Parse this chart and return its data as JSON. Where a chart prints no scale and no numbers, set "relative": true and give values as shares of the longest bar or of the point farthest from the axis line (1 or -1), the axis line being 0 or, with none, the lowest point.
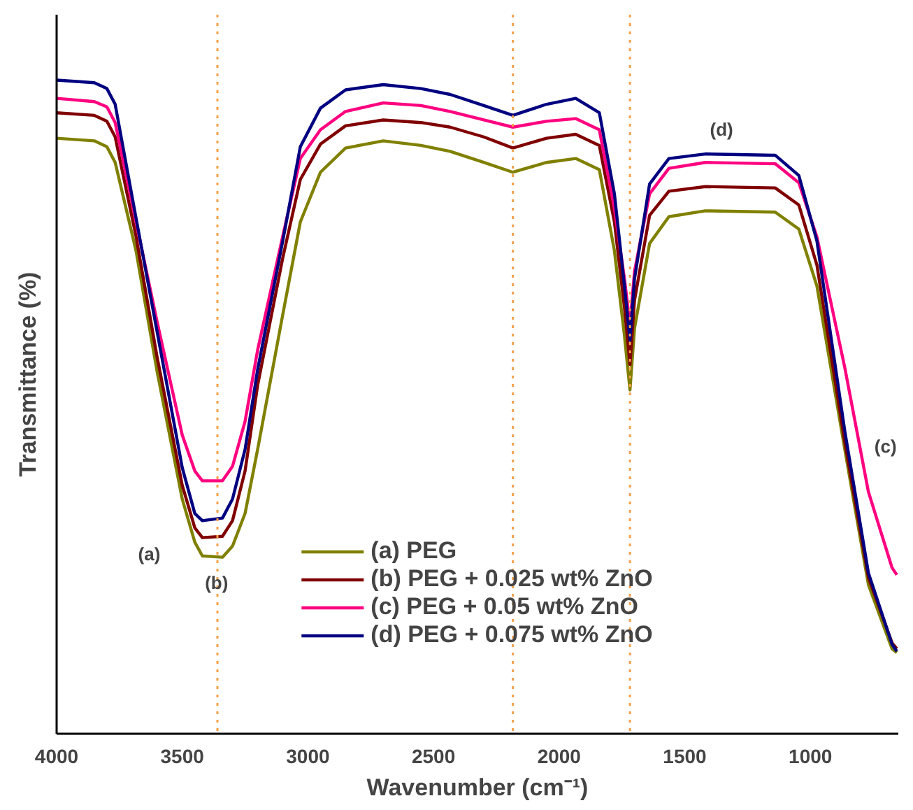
{
  "chart_data": {
    "type": "line",
    "relative": true,
    "xlabel": "Wavenumber (cm⁻¹)",
    "ylabel": "Transmittance (%)",
    "x": [
      4000,
      3850,
      3800,
      3767,
      3684,
      3600,
      3500,
      3450,
      3420,
      3340,
      3300,
      3250,
      3200,
      3100,
      3030,
      2950,
      2850,
      2700,
      2550,
      2434,
      2300,
      2184,
      2050,
      1934,
      1840,
      1780,
      1740,
      1718,
      1700,
      1640,
      1563,
      1418,
      1140,
      1046,
      974,
      863,
      769,
      675,
      656
    ],
    "xlim": [
      4000,
      650
    ],
    "xticks": [
      4000,
      3500,
      3000,
      2500,
      2000,
      1500,
      1000
    ],
    "series": [
      {
        "name": "(a) PEG",
        "color": "#808000",
        "values": [
          0.911,
          0.907,
          0.898,
          0.874,
          0.739,
          0.554,
          0.359,
          0.293,
          0.272,
          0.27,
          0.287,
          0.337,
          0.435,
          0.641,
          0.783,
          0.859,
          0.896,
          0.907,
          0.9,
          0.891,
          0.874,
          0.859,
          0.874,
          0.88,
          0.863,
          0.739,
          0.609,
          0.526,
          0.62,
          0.75,
          0.791,
          0.8,
          0.798,
          0.772,
          0.685,
          0.435,
          0.228,
          0.13,
          0.124
        ]
      },
      {
        "name": "(b) PEG + 0.025 wt% ZnO",
        "color": "#800000",
        "values": [
          0.95,
          0.946,
          0.937,
          0.913,
          0.761,
          0.576,
          0.38,
          0.315,
          0.3,
          0.302,
          0.326,
          0.402,
          0.533,
          0.728,
          0.848,
          0.902,
          0.93,
          0.939,
          0.935,
          0.928,
          0.913,
          0.896,
          0.911,
          0.917,
          0.9,
          0.783,
          0.652,
          0.565,
          0.663,
          0.793,
          0.83,
          0.837,
          0.835,
          0.809,
          0.717,
          0.446,
          0.239,
          0.139,
          0.13
        ]
      },
      {
        "name": "(c) PEG + 0.05 wt% ZnO",
        "color": "#ff0080",
        "values": [
          0.972,
          0.967,
          0.959,
          0.935,
          0.783,
          0.63,
          0.457,
          0.402,
          0.387,
          0.387,
          0.409,
          0.478,
          0.587,
          0.761,
          0.88,
          0.924,
          0.952,
          0.965,
          0.961,
          0.952,
          0.939,
          0.928,
          0.937,
          0.941,
          0.924,
          0.804,
          0.696,
          0.626,
          0.707,
          0.826,
          0.865,
          0.874,
          0.872,
          0.843,
          0.76,
          0.56,
          0.37,
          0.254,
          0.243
        ]
      },
      {
        "name": "(d) PEG + 0.075 wt% ZnO",
        "color": "#000080",
        "values": [
          1.0,
          0.996,
          0.987,
          0.963,
          0.789,
          0.615,
          0.407,
          0.337,
          0.326,
          0.33,
          0.359,
          0.435,
          0.557,
          0.754,
          0.898,
          0.957,
          0.985,
          0.993,
          0.987,
          0.978,
          0.961,
          0.946,
          0.963,
          0.972,
          0.95,
          0.826,
          0.685,
          0.602,
          0.696,
          0.841,
          0.88,
          0.887,
          0.885,
          0.854,
          0.754,
          0.463,
          0.246,
          0.137,
          0.126
        ]
      }
    ],
    "ref_lines": [
      {
        "axis": "x",
        "value": 3360,
        "color": "#f5a04a",
        "line_style": "dotted"
      },
      {
        "axis": "x",
        "value": 2184,
        "color": "#f5a04a",
        "line_style": "dotted"
      },
      {
        "axis": "x",
        "value": 1718,
        "color": "#f5a04a",
        "line_style": "dotted"
      }
    ],
    "annotations": [
      "(a)",
      "(b)",
      "(c)",
      "(d)"
    ],
    "legend": "bottom",
    "grid": false,
    "marker": "none",
    "line_style": "solid"
  }
}
